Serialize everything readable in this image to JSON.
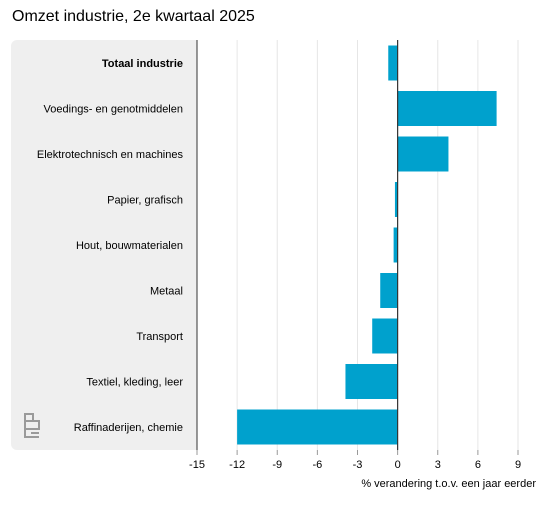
{
  "title": "Omzet industrie, 2e kwartaal 2025",
  "colors": {
    "bar": "#00a1cd",
    "label_panel": "#efefef",
    "gridline": "#e6e6e6",
    "zero_line": "#333333",
    "text": "#000000"
  },
  "logo": {
    "name": "cbs-logo",
    "text": "cbs"
  },
  "chart_data": {
    "type": "bar",
    "orientation": "horizontal",
    "title": "Omzet industrie, 2e kwartaal 2025",
    "categories": [
      "Totaal industrie",
      "Voedings- en genotmiddelen",
      "Elektrotechnisch en machines",
      "Papier, grafisch",
      "Hout, bouwmaterialen",
      "Metaal",
      "Transport",
      "Textiel, kleding, leer",
      "Raffinaderijen, chemie"
    ],
    "emphasized_category": "Totaal industrie",
    "values": [
      -0.7,
      7.4,
      3.8,
      -0.2,
      -0.3,
      -1.3,
      -1.9,
      -3.9,
      -12.0
    ],
    "xlabel": "% verandering t.o.v. een jaar eerder",
    "ylabel": "",
    "xlim": [
      -15,
      9
    ],
    "xticks": [
      -15,
      -12,
      -9,
      -6,
      -3,
      0,
      3,
      6,
      9
    ],
    "xtick_labels": [
      "-15",
      "-12",
      "-9",
      "-6",
      "-3",
      "0",
      "3",
      "6",
      "9"
    ],
    "grid": true,
    "legend": "none"
  }
}
